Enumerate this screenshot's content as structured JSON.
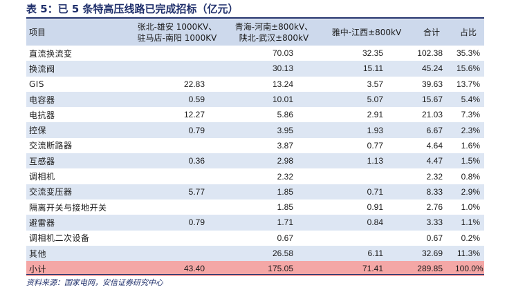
{
  "title": "表 5：已 5 条特高压线路已完成招标（亿元）",
  "headers": {
    "item": "项目",
    "line1_a": "张北-雄安 1000KV、",
    "line1_b": "驻马店-南阳 1000KV",
    "line2_a": "青海-河南±800kV、",
    "line2_b": "陕北-武汉±800kV",
    "line3": "雅中-江西±800kV",
    "total": "合计",
    "share": "占比"
  },
  "rows": [
    {
      "name": "直流换流变",
      "c1": "",
      "c2": "70.03",
      "c3": "32.35",
      "c4": "102.38",
      "c5": "35.3%"
    },
    {
      "name": "换流阀",
      "c1": "",
      "c2": "30.13",
      "c3": "15.11",
      "c4": "45.24",
      "c5": "15.6%"
    },
    {
      "name": "GIS",
      "c1": "22.83",
      "c2": "13.24",
      "c3": "3.57",
      "c4": "39.63",
      "c5": "13.7%"
    },
    {
      "name": "电容器",
      "c1": "0.59",
      "c2": "10.01",
      "c3": "5.07",
      "c4": "15.67",
      "c5": "5.4%"
    },
    {
      "name": "电抗器",
      "c1": "12.27",
      "c2": "5.86",
      "c3": "2.91",
      "c4": "21.03",
      "c5": "7.3%"
    },
    {
      "name": "控保",
      "c1": "0.79",
      "c2": "3.95",
      "c3": "1.93",
      "c4": "6.67",
      "c5": "2.3%"
    },
    {
      "name": "交流断路器",
      "c1": "",
      "c2": "3.87",
      "c3": "0.77",
      "c4": "4.64",
      "c5": "1.6%"
    },
    {
      "name": "互感器",
      "c1": "0.36",
      "c2": "2.98",
      "c3": "1.13",
      "c4": "4.47",
      "c5": "1.5%"
    },
    {
      "name": "调相机",
      "c1": "",
      "c2": "2.32",
      "c3": "",
      "c4": "2.32",
      "c5": "0.8%"
    },
    {
      "name": "交流变压器",
      "c1": "5.77",
      "c2": "1.85",
      "c3": "0.71",
      "c4": "8.33",
      "c5": "2.9%"
    },
    {
      "name": "隔离开关与接地开关",
      "c1": "",
      "c2": "1.85",
      "c3": "0.91",
      "c4": "2.76",
      "c5": "1.0%"
    },
    {
      "name": "避雷器",
      "c1": "0.79",
      "c2": "1.71",
      "c3": "0.84",
      "c4": "3.33",
      "c5": "1.1%"
    },
    {
      "name": "调相机二次设备",
      "c1": "",
      "c2": "0.67",
      "c3": "",
      "c4": "0.67",
      "c5": "0.2%"
    },
    {
      "name": "其他",
      "c1": "",
      "c2": "26.58",
      "c3": "6.11",
      "c4": "32.69",
      "c5": "11.3%"
    }
  ],
  "total": {
    "name": "小计",
    "c1": "43.40",
    "c2": "175.05",
    "c3": "71.41",
    "c4": "289.85",
    "c5": "100.0%"
  },
  "source": "资料来源：国家电网，安信证券研究中心"
}
